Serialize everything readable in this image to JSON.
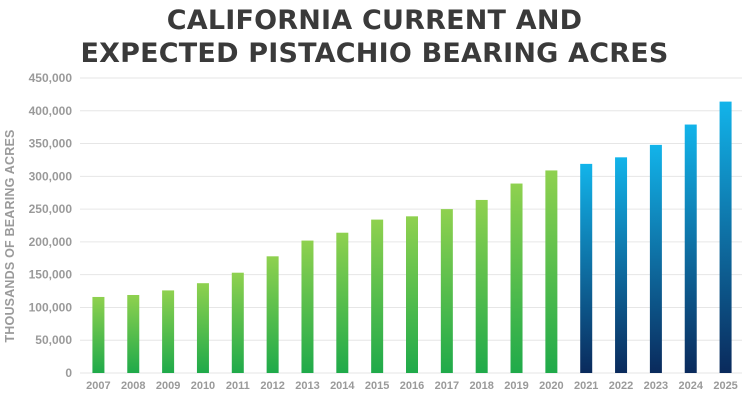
{
  "chart_data": {
    "type": "bar",
    "title_lines": [
      "CALIFORNIA CURRENT AND",
      "EXPECTED PISTACHIO BEARING ACRES"
    ],
    "ylabel": "THOUSANDS OF BEARING ACRES",
    "xlabel": "",
    "ylim": [
      0,
      450000
    ],
    "ytick_values": [
      0,
      50000,
      100000,
      150000,
      200000,
      250000,
      300000,
      350000,
      400000,
      450000
    ],
    "ytick_labels": [
      "0",
      "50,000",
      "100,000",
      "150,000",
      "200,000",
      "250,000",
      "300,000",
      "350,000",
      "400,000",
      "450,000"
    ],
    "grid": true,
    "legend": "none",
    "categories": [
      "2007",
      "2008",
      "2009",
      "2010",
      "2011",
      "2012",
      "2013",
      "2014",
      "2015",
      "2016",
      "2017",
      "2018",
      "2019",
      "2020",
      "2021",
      "2022",
      "2023",
      "2024",
      "2025"
    ],
    "values": [
      116000,
      119000,
      126000,
      137000,
      153000,
      178000,
      202000,
      214000,
      234000,
      239000,
      250000,
      264000,
      289000,
      309000,
      319000,
      329000,
      348000,
      379000,
      414000
    ],
    "series_kind": [
      "current",
      "current",
      "current",
      "current",
      "current",
      "current",
      "current",
      "current",
      "current",
      "current",
      "current",
      "current",
      "current",
      "current",
      "expected",
      "expected",
      "expected",
      "expected",
      "expected"
    ],
    "colors": {
      "current_top": "#8fd14f",
      "current_bottom": "#1faa4a",
      "expected_top": "#12b4ea",
      "expected_bottom": "#0a2a5c",
      "grid": "#e6e6e6",
      "axis_text": "#9a9a9a",
      "title": "#3a3a3a"
    }
  }
}
